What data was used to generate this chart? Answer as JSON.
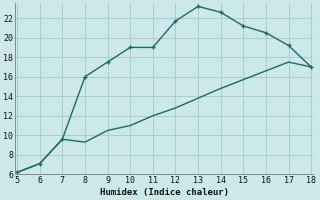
{
  "xlabel": "Humidex (Indice chaleur)",
  "bg_color": "#cce8e8",
  "grid_color": "#aacccc",
  "line_color": "#1a6b6b",
  "xlim": [
    5,
    18
  ],
  "ylim": [
    6,
    23
  ],
  "xticks": [
    5,
    6,
    7,
    8,
    9,
    10,
    11,
    12,
    13,
    14,
    15,
    16,
    17,
    18
  ],
  "yticks": [
    6,
    8,
    10,
    12,
    14,
    16,
    18,
    20,
    22
  ],
  "upper_x": [
    5,
    6,
    7,
    8,
    9,
    10,
    11,
    12,
    13,
    14,
    15,
    16,
    17,
    18
  ],
  "upper_y": [
    6.2,
    7.1,
    9.6,
    16.0,
    17.5,
    19.0,
    19.0,
    21.7,
    23.2,
    22.6,
    21.2,
    20.5,
    19.2,
    17.0
  ],
  "lower_x": [
    5,
    6,
    7,
    8,
    9,
    10,
    11,
    12,
    13,
    14,
    15,
    16,
    17,
    18
  ],
  "lower_y": [
    6.2,
    7.1,
    9.6,
    9.3,
    10.5,
    11.0,
    12.0,
    12.8,
    13.8,
    14.8,
    15.7,
    16.6,
    17.5,
    17.0
  ]
}
